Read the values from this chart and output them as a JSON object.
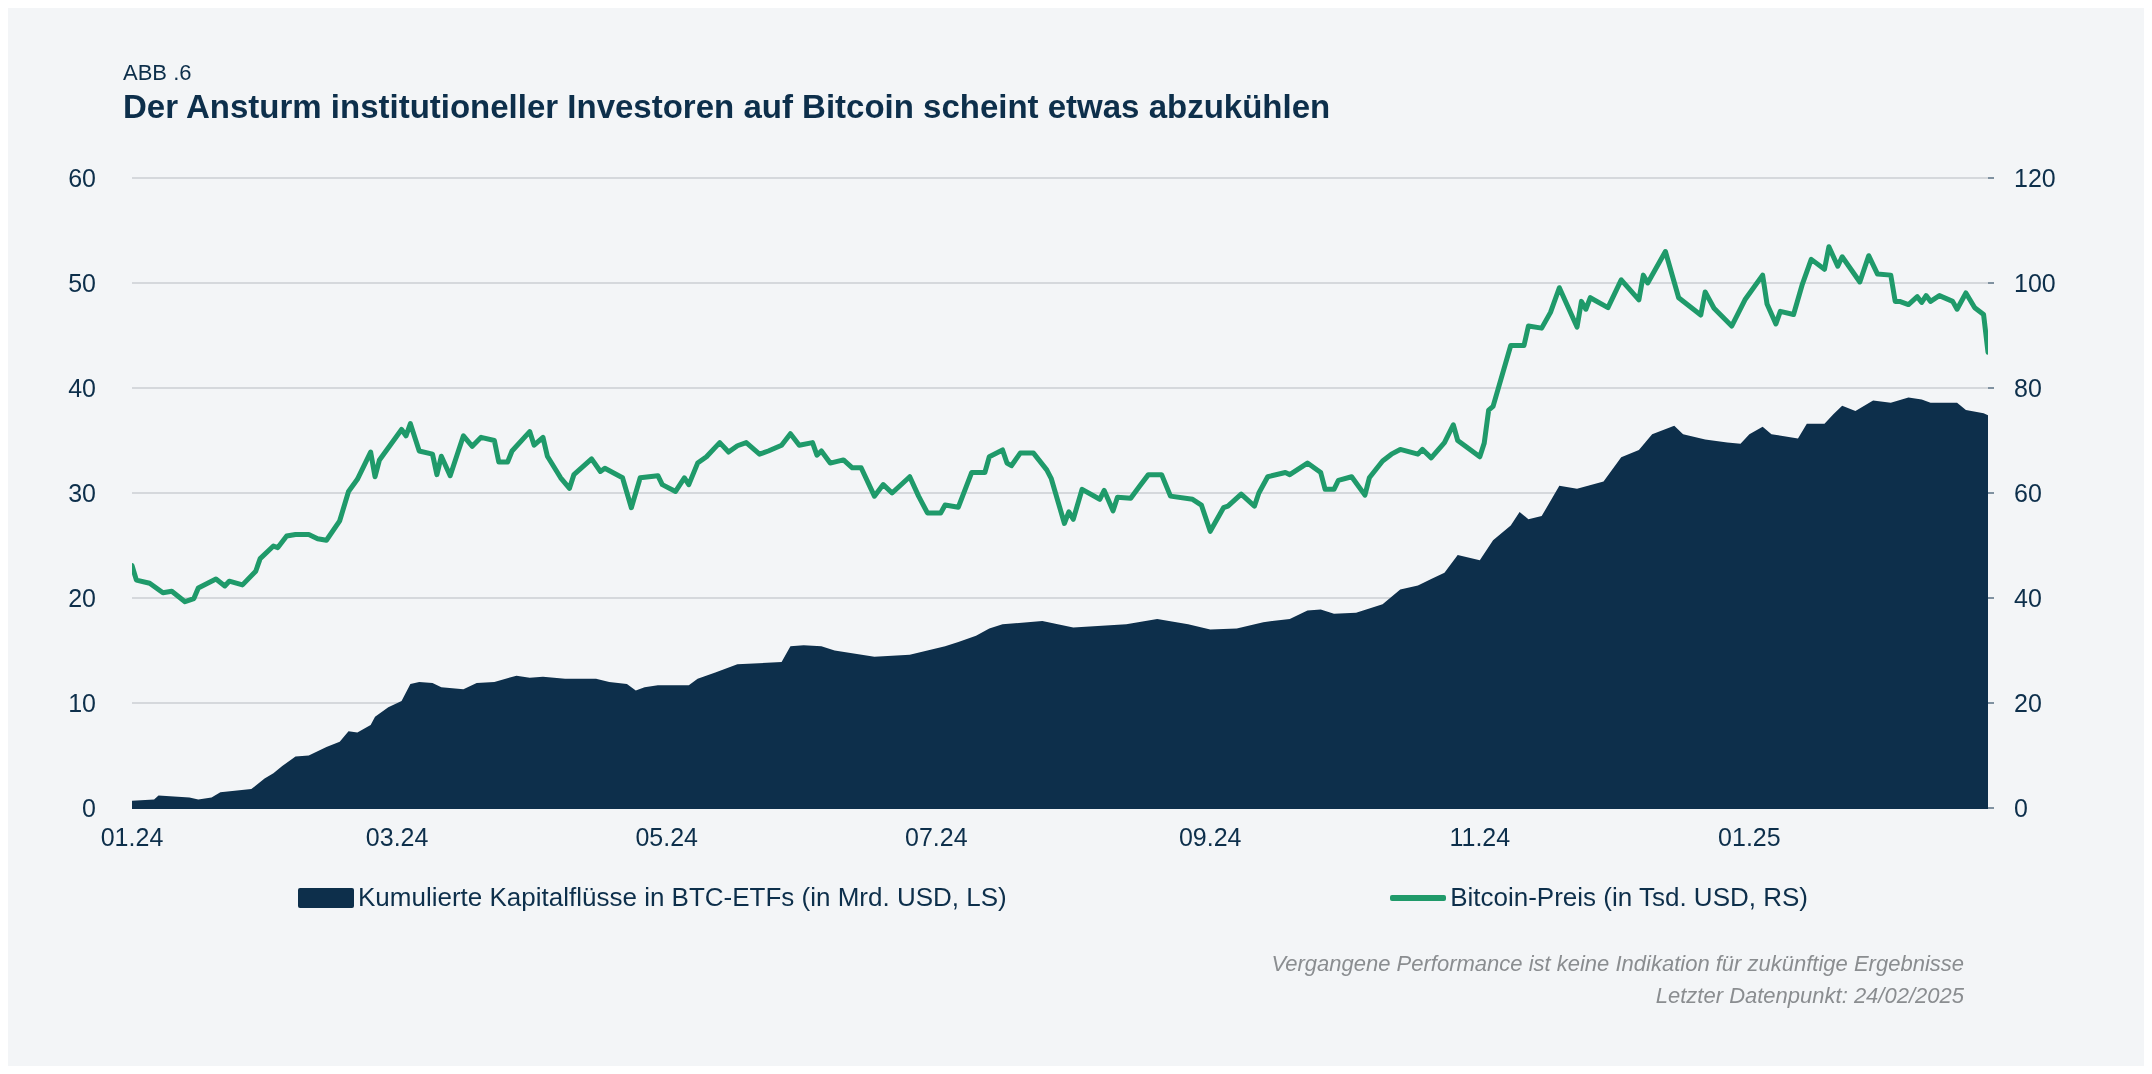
{
  "chart_data": {
    "type": "area",
    "subtitle": "ABB .6",
    "title": "Der Ansturm institutioneller Investoren auf Bitcoin scheint etwas abzukühlen",
    "xlim": [
      "2024-01-01",
      "2025-02-24"
    ],
    "xticks": [
      {
        "value": "2024-01-01",
        "label": "01.24"
      },
      {
        "value": "2024-03-01",
        "label": "03.24"
      },
      {
        "value": "2024-05-01",
        "label": "05.24"
      },
      {
        "value": "2024-07-01",
        "label": "07.24"
      },
      {
        "value": "2024-09-01",
        "label": "09.24"
      },
      {
        "value": "2024-11-01",
        "label": "11.24"
      },
      {
        "value": "2025-01-01",
        "label": "01.25"
      }
    ],
    "ylim": [
      0,
      60
    ],
    "yticks": [
      0,
      10,
      20,
      30,
      40,
      50,
      60
    ],
    "y2lim": [
      0,
      120
    ],
    "y2ticks": [
      0,
      20,
      40,
      60,
      80,
      100,
      120
    ],
    "grid": "y",
    "legend": "bottom",
    "series": [
      {
        "name": "Kumulierte Kapitalflüsse in BTC-ETFs (in Mrd. USD, LS)",
        "color": "#0d2f4b",
        "x": [
          "2024-01-01",
          "2024-01-06",
          "2024-01-07",
          "2024-01-14",
          "2024-01-16",
          "2024-01-19",
          "2024-01-21",
          "2024-01-28",
          "2024-01-31",
          "2024-02-02",
          "2024-02-04",
          "2024-02-07",
          "2024-02-10",
          "2024-02-14",
          "2024-02-17",
          "2024-02-19",
          "2024-02-21",
          "2024-02-24",
          "2024-02-25",
          "2024-02-28",
          "2024-03-02",
          "2024-03-04",
          "2024-03-06",
          "2024-03-09",
          "2024-03-11",
          "2024-03-16",
          "2024-03-19",
          "2024-03-23",
          "2024-03-28",
          "2024-03-31",
          "2024-04-03",
          "2024-04-08",
          "2024-04-15",
          "2024-04-18",
          "2024-04-22",
          "2024-04-24",
          "2024-04-26",
          "2024-04-29",
          "2024-05-06",
          "2024-05-08",
          "2024-05-12",
          "2024-05-17",
          "2024-05-27",
          "2024-05-29",
          "2024-06-01",
          "2024-06-05",
          "2024-06-08",
          "2024-06-17",
          "2024-06-25",
          "2024-07-03",
          "2024-07-06",
          "2024-07-10",
          "2024-07-13",
          "2024-07-16",
          "2024-07-25",
          "2024-08-01",
          "2024-08-13",
          "2024-08-20",
          "2024-08-27",
          "2024-09-01",
          "2024-09-07",
          "2024-09-13",
          "2024-09-19",
          "2024-09-23",
          "2024-09-26",
          "2024-09-29",
          "2024-10-04",
          "2024-10-10",
          "2024-10-14",
          "2024-10-18",
          "2024-10-21",
          "2024-10-24",
          "2024-10-27",
          "2024-11-01",
          "2024-11-04",
          "2024-11-08",
          "2024-11-10",
          "2024-11-12",
          "2024-11-15",
          "2024-11-19",
          "2024-11-23",
          "2024-11-29",
          "2024-12-03",
          "2024-12-07",
          "2024-12-10",
          "2024-12-15",
          "2024-12-17",
          "2024-12-22",
          "2024-12-27",
          "2024-12-30",
          "2025-01-01",
          "2025-01-04",
          "2025-01-06",
          "2025-01-12",
          "2025-01-14",
          "2025-01-18",
          "2025-01-20",
          "2025-01-22",
          "2025-01-25",
          "2025-01-29",
          "2025-02-02",
          "2025-02-06",
          "2025-02-09",
          "2025-02-11",
          "2025-02-17",
          "2025-02-19",
          "2025-02-23",
          "2025-02-24"
        ],
        "values": [
          0.7,
          0.8,
          1.2,
          1.0,
          0.8,
          1.0,
          1.5,
          1.8,
          2.8,
          3.3,
          4.0,
          4.9,
          5.0,
          5.8,
          6.3,
          7.3,
          7.2,
          7.9,
          8.7,
          9.6,
          10.2,
          11.8,
          12.0,
          11.9,
          11.5,
          11.3,
          11.9,
          12.0,
          12.6,
          12.4,
          12.5,
          12.3,
          12.3,
          12.0,
          11.8,
          11.2,
          11.5,
          11.7,
          11.7,
          12.3,
          12.9,
          13.7,
          13.9,
          15.4,
          15.5,
          15.4,
          15.0,
          14.4,
          14.6,
          15.4,
          15.8,
          16.4,
          17.1,
          17.5,
          17.8,
          17.2,
          17.5,
          18.0,
          17.5,
          17.0,
          17.1,
          17.7,
          18.0,
          18.8,
          18.9,
          18.5,
          18.6,
          19.4,
          20.8,
          21.2,
          21.8,
          22.4,
          24.1,
          23.6,
          25.5,
          26.9,
          28.2,
          27.5,
          27.8,
          30.7,
          30.4,
          31.1,
          33.4,
          34.1,
          35.6,
          36.4,
          35.6,
          35.1,
          34.8,
          34.7,
          35.6,
          36.3,
          35.6,
          35.2,
          36.6,
          36.6,
          37.5,
          38.3,
          37.8,
          38.8,
          38.6,
          39.1,
          38.9,
          38.6,
          38.6,
          37.9,
          37.6,
          37.4
        ]
      },
      {
        "name": "Bitcoin-Preis (in Tsd. USD, RS)",
        "type": "line",
        "axis": "y2",
        "color": "#1f9a6a",
        "x": [
          "2024-01-01",
          "2024-01-02",
          "2024-01-05",
          "2024-01-08",
          "2024-01-10",
          "2024-01-13",
          "2024-01-15",
          "2024-01-16",
          "2024-01-20",
          "2024-01-22",
          "2024-01-23",
          "2024-01-26",
          "2024-01-29",
          "2024-01-30",
          "2024-02-02",
          "2024-02-03",
          "2024-02-05",
          "2024-02-07",
          "2024-02-10",
          "2024-02-12",
          "2024-02-14",
          "2024-02-17",
          "2024-02-19",
          "2024-02-21",
          "2024-02-24",
          "2024-02-25",
          "2024-02-26",
          "2024-03-02",
          "2024-03-03",
          "2024-03-04",
          "2024-03-06",
          "2024-03-09",
          "2024-03-10",
          "2024-03-11",
          "2024-03-13",
          "2024-03-16",
          "2024-03-18",
          "2024-03-20",
          "2024-03-23",
          "2024-03-24",
          "2024-03-26",
          "2024-03-27",
          "2024-03-31",
          "2024-04-01",
          "2024-04-03",
          "2024-04-04",
          "2024-04-07",
          "2024-04-09",
          "2024-04-10",
          "2024-04-14",
          "2024-04-16",
          "2024-04-17",
          "2024-04-21",
          "2024-04-23",
          "2024-04-25",
          "2024-04-29",
          "2024-04-30",
          "2024-05-03",
          "2024-05-05",
          "2024-05-06",
          "2024-05-08",
          "2024-05-10",
          "2024-05-13",
          "2024-05-15",
          "2024-05-17",
          "2024-05-19",
          "2024-05-22",
          "2024-05-24",
          "2024-05-27",
          "2024-05-29",
          "2024-05-31",
          "2024-06-03",
          "2024-06-04",
          "2024-06-05",
          "2024-06-07",
          "2024-06-10",
          "2024-06-12",
          "2024-06-14",
          "2024-06-17",
          "2024-06-19",
          "2024-06-21",
          "2024-06-25",
          "2024-06-27",
          "2024-06-29",
          "2024-07-02",
          "2024-07-03",
          "2024-07-06",
          "2024-07-09",
          "2024-07-12",
          "2024-07-13",
          "2024-07-16",
          "2024-07-17",
          "2024-07-18",
          "2024-07-20",
          "2024-07-23",
          "2024-07-26",
          "2024-07-27",
          "2024-07-30",
          "2024-07-31",
          "2024-08-01",
          "2024-08-03",
          "2024-08-07",
          "2024-08-08",
          "2024-08-10",
          "2024-08-11",
          "2024-08-14",
          "2024-08-16",
          "2024-08-18",
          "2024-08-21",
          "2024-08-23",
          "2024-08-28",
          "2024-08-30",
          "2024-09-01",
          "2024-09-04",
          "2024-09-05",
          "2024-09-08",
          "2024-09-11",
          "2024-09-12",
          "2024-09-14",
          "2024-09-18",
          "2024-09-19",
          "2024-09-23",
          "2024-09-26",
          "2024-09-27",
          "2024-09-29",
          "2024-09-30",
          "2024-10-03",
          "2024-10-06",
          "2024-10-07",
          "2024-10-10",
          "2024-10-12",
          "2024-10-14",
          "2024-10-18",
          "2024-10-19",
          "2024-10-21",
          "2024-10-24",
          "2024-10-26",
          "2024-10-27",
          "2024-11-01",
          "2024-11-02",
          "2024-11-03",
          "2024-11-04",
          "2024-11-08",
          "2024-11-11",
          "2024-11-12",
          "2024-11-15",
          "2024-11-17",
          "2024-11-19",
          "2024-11-23",
          "2024-11-24",
          "2024-11-25",
          "2024-11-26",
          "2024-11-30",
          "2024-12-03",
          "2024-12-07",
          "2024-12-08",
          "2024-12-09",
          "2024-12-13",
          "2024-12-16",
          "2024-12-21",
          "2024-12-22",
          "2024-12-24",
          "2024-12-28",
          "2024-12-31",
          "2025-01-04",
          "2025-01-05",
          "2025-01-07",
          "2025-01-08",
          "2025-01-11",
          "2025-01-13",
          "2025-01-15",
          "2025-01-18",
          "2025-01-19",
          "2025-01-21",
          "2025-01-22",
          "2025-01-26",
          "2025-01-28",
          "2025-01-30",
          "2025-02-02",
          "2025-02-03",
          "2025-02-04",
          "2025-02-06",
          "2025-02-08",
          "2025-02-09",
          "2025-02-10",
          "2025-02-11",
          "2025-02-13",
          "2025-02-16",
          "2025-02-17",
          "2025-02-19",
          "2025-02-21",
          "2025-02-23",
          "2025-02-24"
        ],
        "values": [
          46.2,
          43.4,
          42.8,
          41.0,
          41.3,
          39.3,
          39.9,
          41.9,
          43.6,
          42.3,
          43.2,
          42.5,
          45.1,
          47.5,
          49.9,
          49.6,
          51.8,
          52.1,
          52.1,
          51.3,
          51.0,
          54.7,
          60.3,
          62.6,
          67.8,
          63.1,
          66.3,
          72.1,
          70.9,
          73.2,
          68.0,
          67.4,
          63.5,
          67.0,
          63.3,
          70.9,
          68.9,
          70.6,
          70.0,
          65.9,
          65.9,
          68.0,
          71.7,
          69.1,
          70.6,
          67.0,
          62.9,
          60.9,
          63.5,
          66.5,
          64.1,
          64.7,
          62.9,
          57.2,
          62.9,
          63.3,
          61.6,
          60.3,
          62.9,
          61.6,
          65.7,
          66.9,
          69.6,
          67.8,
          69.0,
          69.6,
          67.4,
          68.0,
          69.1,
          71.3,
          69.1,
          69.6,
          67.2,
          68.0,
          65.7,
          66.3,
          64.8,
          64.8,
          59.4,
          61.6,
          60.0,
          63.1,
          59.4,
          56.2,
          56.2,
          57.7,
          57.3,
          63.9,
          63.9,
          66.9,
          68.2,
          65.7,
          65.2,
          67.6,
          67.6,
          64.4,
          62.8,
          54.2,
          56.4,
          55.0,
          60.7,
          58.8,
          60.5,
          56.6,
          59.2,
          59.0,
          61.3,
          63.5,
          63.5,
          59.4,
          58.8,
          57.7,
          52.7,
          57.2,
          57.5,
          59.8,
          57.5,
          60.0,
          63.1,
          63.9,
          63.5,
          65.7,
          63.9,
          60.7,
          60.7,
          62.4,
          63.1,
          59.6,
          62.9,
          66.1,
          67.4,
          68.3,
          67.4,
          68.3,
          66.7,
          69.6,
          73.0,
          70.0,
          66.9,
          69.5,
          75.8,
          76.5,
          88.1,
          88.1,
          91.8,
          91.4,
          94.4,
          99.1,
          91.6,
          96.5,
          95.0,
          97.2,
          95.3,
          100.6,
          96.8,
          101.5,
          100.0,
          106.0,
          97.2,
          93.9,
          98.3,
          95.2,
          91.8,
          96.8,
          101.5,
          96.0,
          92.2,
          94.6,
          94.0,
          99.8,
          104.5,
          102.6,
          106.9,
          103.2,
          105.0,
          100.2,
          105.2,
          101.7,
          101.5,
          96.5,
          96.5,
          95.9,
          97.4,
          96.3,
          97.6,
          96.5,
          97.6,
          96.5,
          95.0,
          98.1,
          95.3,
          94.0,
          86.8
        ]
      }
    ],
    "annotations": [
      "Vergangene Performance ist keine Indikation für zukünftige Ergebnisse",
      "Letzter Datenpunkt: 24/02/2025"
    ]
  }
}
